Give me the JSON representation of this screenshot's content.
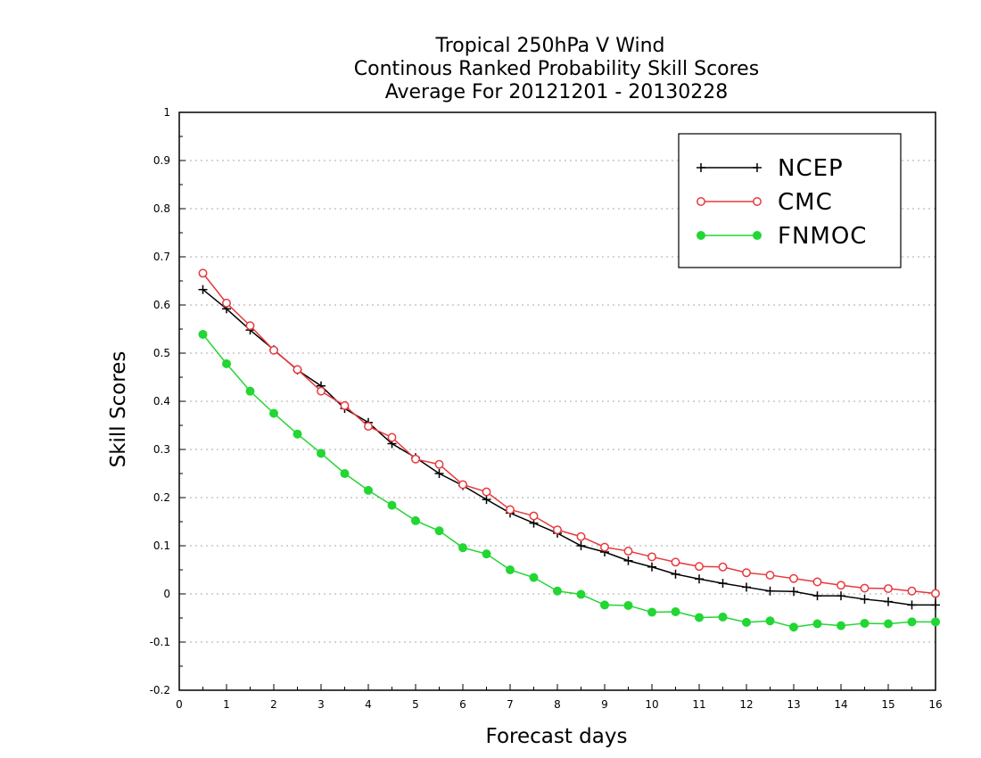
{
  "chart_data": {
    "type": "line",
    "title_lines": [
      "Tropical 250hPa V Wind",
      "Continous Ranked Probability Skill Scores",
      "Average For 20121201 - 20130228"
    ],
    "xlabel": "Forecast days",
    "ylabel": "Skill Scores",
    "xlim": [
      0,
      16
    ],
    "ylim": [
      -0.2,
      1
    ],
    "xticks": [
      "0",
      "1",
      "2",
      "3",
      "4",
      "5",
      "6",
      "7",
      "8",
      "9",
      "10",
      "11",
      "12",
      "13",
      "14",
      "15",
      "16"
    ],
    "yticks": [
      "-0.2",
      "-0.1",
      "0",
      "0.1",
      "0.2",
      "0.3",
      "0.4",
      "0.5",
      "0.6",
      "0.7",
      "0.8",
      "0.9",
      "1"
    ],
    "grid": "horizontal dotted",
    "legend_position": "top-right",
    "x": [
      0.5,
      1,
      1.5,
      2,
      2.5,
      3,
      3.5,
      4,
      4.5,
      5,
      5.5,
      6,
      6.5,
      7,
      7.5,
      8,
      8.5,
      9,
      9.5,
      10,
      10.5,
      11,
      11.5,
      12,
      12.5,
      13,
      13.5,
      14,
      14.5,
      15,
      15.5,
      16
    ],
    "series": [
      {
        "name": "NCEP",
        "color": "#000000",
        "marker": "plus",
        "values": [
          0.632,
          0.592,
          0.548,
          0.507,
          0.465,
          0.432,
          0.385,
          0.356,
          0.312,
          0.283,
          0.25,
          0.225,
          0.196,
          0.168,
          0.147,
          0.126,
          0.1,
          0.087,
          0.069,
          0.056,
          0.041,
          0.031,
          0.022,
          0.014,
          0.006,
          0.005,
          -0.004,
          -0.004,
          -0.011,
          -0.016,
          -0.023,
          -0.023
        ]
      },
      {
        "name": "CMC",
        "color": "#e8383d",
        "marker": "open-circle",
        "values": [
          0.666,
          0.604,
          0.557,
          0.506,
          0.466,
          0.421,
          0.391,
          0.348,
          0.325,
          0.28,
          0.269,
          0.227,
          0.212,
          0.175,
          0.162,
          0.133,
          0.119,
          0.097,
          0.089,
          0.077,
          0.066,
          0.057,
          0.056,
          0.044,
          0.039,
          0.032,
          0.025,
          0.018,
          0.012,
          0.011,
          0.006,
          0.001
        ]
      },
      {
        "name": "FNMOC",
        "color": "#22d633",
        "marker": "filled-circle",
        "values": [
          0.539,
          0.478,
          0.421,
          0.375,
          0.332,
          0.292,
          0.25,
          0.215,
          0.184,
          0.152,
          0.131,
          0.096,
          0.083,
          0.05,
          0.034,
          0.006,
          -0.001,
          -0.023,
          -0.024,
          -0.038,
          -0.037,
          -0.049,
          -0.048,
          -0.059,
          -0.056,
          -0.069,
          -0.062,
          -0.066,
          -0.061,
          -0.062,
          -0.058,
          -0.058
        ]
      }
    ]
  }
}
